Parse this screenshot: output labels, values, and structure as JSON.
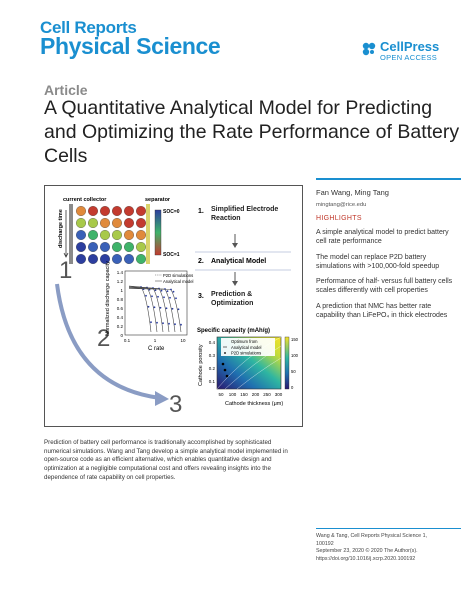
{
  "journal": {
    "line1": "Cell Reports",
    "line2": "Physical Science"
  },
  "publisher": {
    "name": "CellPress",
    "tag": "OPEN ACCESS",
    "brand_color": "#1a8fd0"
  },
  "article_label": "Article",
  "title": "A Quantitative Analytical Model for Predicting and Optimizing the Rate Performance of Battery Cells",
  "figure": {
    "labels": {
      "current_collector": "current collector",
      "separator": "separator",
      "discharge_time": "discharge time",
      "soc0": "SOC=0",
      "soc1": "SOC=1",
      "y_axis": "Normalized discharge capacity",
      "x_axis": "C rate",
      "legend_p2d": "P2D simulations",
      "legend_analytical": "Analytical model",
      "contour_title": "Specific capacity (mAh/g)",
      "contour_y": "Cathode porosity",
      "contour_x": "Cathode thickness (μm)",
      "legend_optimum": "Optimum from",
      "legend_analytical2": "Analytical model",
      "legend_p2d2": "P2D simulations"
    },
    "steps": [
      {
        "num": "1.",
        "text": "Simplified Electrode Reaction"
      },
      {
        "num": "2.",
        "text": "Analytical Model"
      },
      {
        "num": "3.",
        "text": "Prediction & Optimization"
      }
    ],
    "big_numbers": [
      "1",
      "2",
      "3"
    ],
    "capacity_ticks": [
      "1.4",
      "1.2",
      "1",
      "0.8",
      "0.6",
      "0.4",
      "0.2",
      "0"
    ],
    "crate_ticks": [
      "0.1",
      "1",
      "10"
    ],
    "porosity_ticks": [
      "0.4",
      "0.3",
      "0.2",
      "0.1"
    ],
    "thickness_ticks": [
      "50",
      "100",
      "150",
      "200",
      "250",
      "300"
    ],
    "colorbar_ticks": [
      "150",
      "100",
      "50",
      "0"
    ]
  },
  "caption": "Prediction of battery cell performance is traditionally accomplished by sophisticated numerical simulations. Wang and Tang develop a simple analytical model implemented in open-source code as an efficient alternative, which enables quantitative design and optimization at a negligible computational cost and offers revealing insights into the dependence of rate capability on cell properties.",
  "authors": "Fan Wang, Ming Tang",
  "email": "mingtang@rice.edu",
  "highlights_label": "HIGHLIGHTS",
  "highlights": [
    "A simple analytical model to predict battery cell rate performance",
    "The model can replace P2D battery simulations with >100,000-fold speedup",
    "Performance of half- versus full battery cells scales differently with cell properties",
    "A prediction that NMC has better rate capability than LiFePO₄ in thick electrodes"
  ],
  "citation": {
    "line1": "Wang & Tang, Cell Reports Physical Science 1,",
    "line2": "100192",
    "line3": "September 23, 2020 © 2020 The Author(s).",
    "line4": "https://doi.org/10.1016/j.xcrp.2020.100192"
  }
}
